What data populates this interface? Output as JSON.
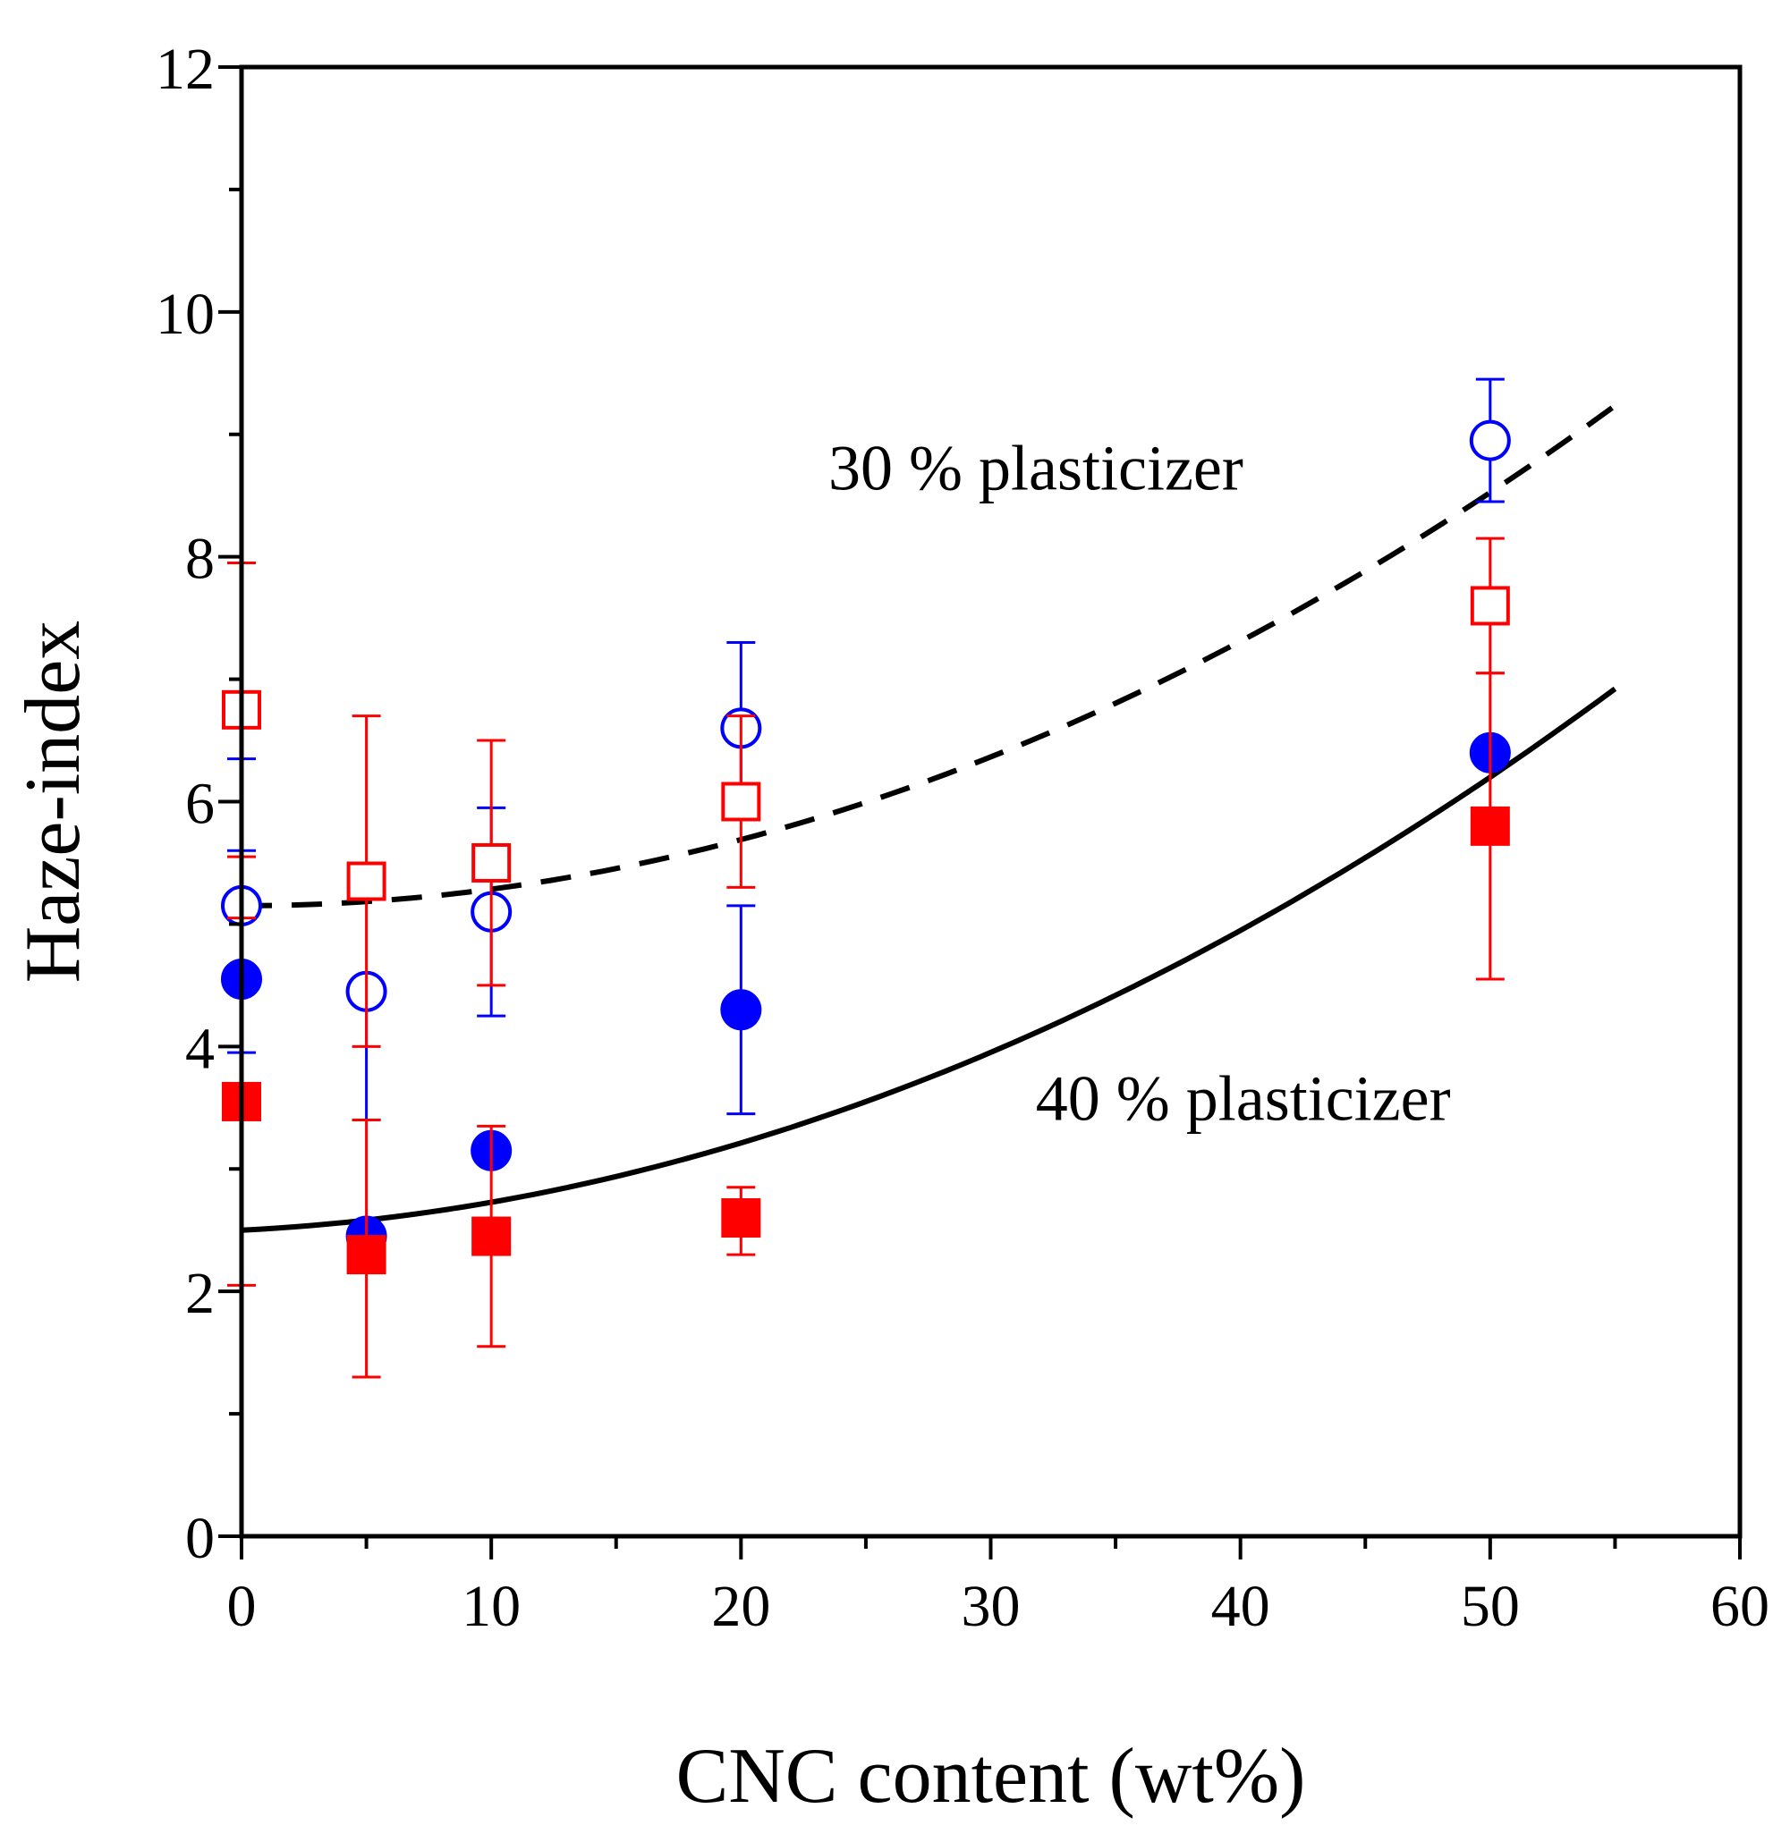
{
  "chart_data": {
    "type": "scatter",
    "xlabel": "CNC content (wt%)",
    "ylabel": "Haze-index",
    "xlim": [
      0,
      60
    ],
    "ylim": [
      0,
      12
    ],
    "xticks": [
      0,
      10,
      20,
      30,
      40,
      50,
      60
    ],
    "yticks": [
      0,
      2,
      4,
      6,
      8,
      10,
      12
    ],
    "xtick_labels": [
      "0",
      "10",
      "20",
      "30",
      "40",
      "50",
      "60"
    ],
    "ytick_labels": [
      "0",
      "2",
      "4",
      "6",
      "8",
      "10",
      "12"
    ],
    "grid": false,
    "colors": {
      "blue": "#0000ff",
      "red": "#ff0000",
      "fit": "#000000"
    },
    "series": [
      {
        "marker": "open-circle",
        "color": "#0000ff",
        "points": [
          {
            "x": 0,
            "y": 5.15,
            "err_lo": 3.95,
            "err_hi": 6.35
          },
          {
            "x": 5,
            "y": 4.45,
            "err_lo": 3.4,
            "err_hi": 4.45
          },
          {
            "x": 10,
            "y": 5.1,
            "err_lo": 4.25,
            "err_hi": 5.95
          },
          {
            "x": 20,
            "y": 6.6,
            "err_lo": 5.9,
            "err_hi": 7.3
          },
          {
            "x": 50,
            "y": 8.95,
            "err_lo": 8.45,
            "err_hi": 9.45
          }
        ]
      },
      {
        "marker": "open-square",
        "color": "#ff0000",
        "points": [
          {
            "x": 0,
            "y": 6.75,
            "err_lo": 5.55,
            "err_hi": 7.95
          },
          {
            "x": 5,
            "y": 5.35,
            "err_lo": 4.0,
            "err_hi": 6.7
          },
          {
            "x": 10,
            "y": 5.5,
            "err_lo": 4.5,
            "err_hi": 6.5
          },
          {
            "x": 20,
            "y": 6.0,
            "err_lo": 5.3,
            "err_hi": 6.7
          },
          {
            "x": 50,
            "y": 7.6,
            "err_lo": 7.05,
            "err_hi": 8.15
          }
        ]
      },
      {
        "marker": "filled-circle",
        "color": "#0000ff",
        "points": [
          {
            "x": 0,
            "y": 4.55,
            "err_lo": 3.5,
            "err_hi": 5.6
          },
          {
            "x": 5,
            "y": 2.45,
            "err_lo": 2.4,
            "err_hi": 2.5
          },
          {
            "x": 10,
            "y": 3.15,
            "err_lo": 3.1,
            "err_hi": 3.2
          },
          {
            "x": 20,
            "y": 4.3,
            "err_lo": 3.45,
            "err_hi": 5.15
          },
          {
            "x": 50,
            "y": 6.4,
            "err_lo": 6.35,
            "err_hi": 6.45
          }
        ]
      },
      {
        "marker": "filled-square",
        "color": "#ff0000",
        "points": [
          {
            "x": 0,
            "y": 3.55,
            "err_lo": 2.05,
            "err_hi": 5.05
          },
          {
            "x": 5,
            "y": 2.3,
            "err_lo": 1.3,
            "err_hi": 3.4
          },
          {
            "x": 10,
            "y": 2.45,
            "err_lo": 1.55,
            "err_hi": 3.35
          },
          {
            "x": 20,
            "y": 2.6,
            "err_lo": 2.3,
            "err_hi": 2.85
          },
          {
            "x": 50,
            "y": 5.8,
            "err_lo": 4.55,
            "err_hi": 7.05
          }
        ]
      }
    ],
    "fits": [
      {
        "style": "dashed",
        "label": "30 % plasticizer",
        "x_range": [
          0,
          55
        ],
        "coef": [
          5.15,
          0.0,
          0.00135
        ]
      },
      {
        "style": "solid",
        "label": "40 % plasticizer",
        "x_range": [
          0,
          55
        ],
        "coef": [
          2.5,
          0.01,
          0.00128
        ]
      }
    ],
    "annotations": [
      {
        "text": "30 % plasticizer",
        "x": 23.5,
        "y": 8.55
      },
      {
        "text": "40 % plasticizer",
        "x": 31.8,
        "y": 3.4
      }
    ]
  }
}
